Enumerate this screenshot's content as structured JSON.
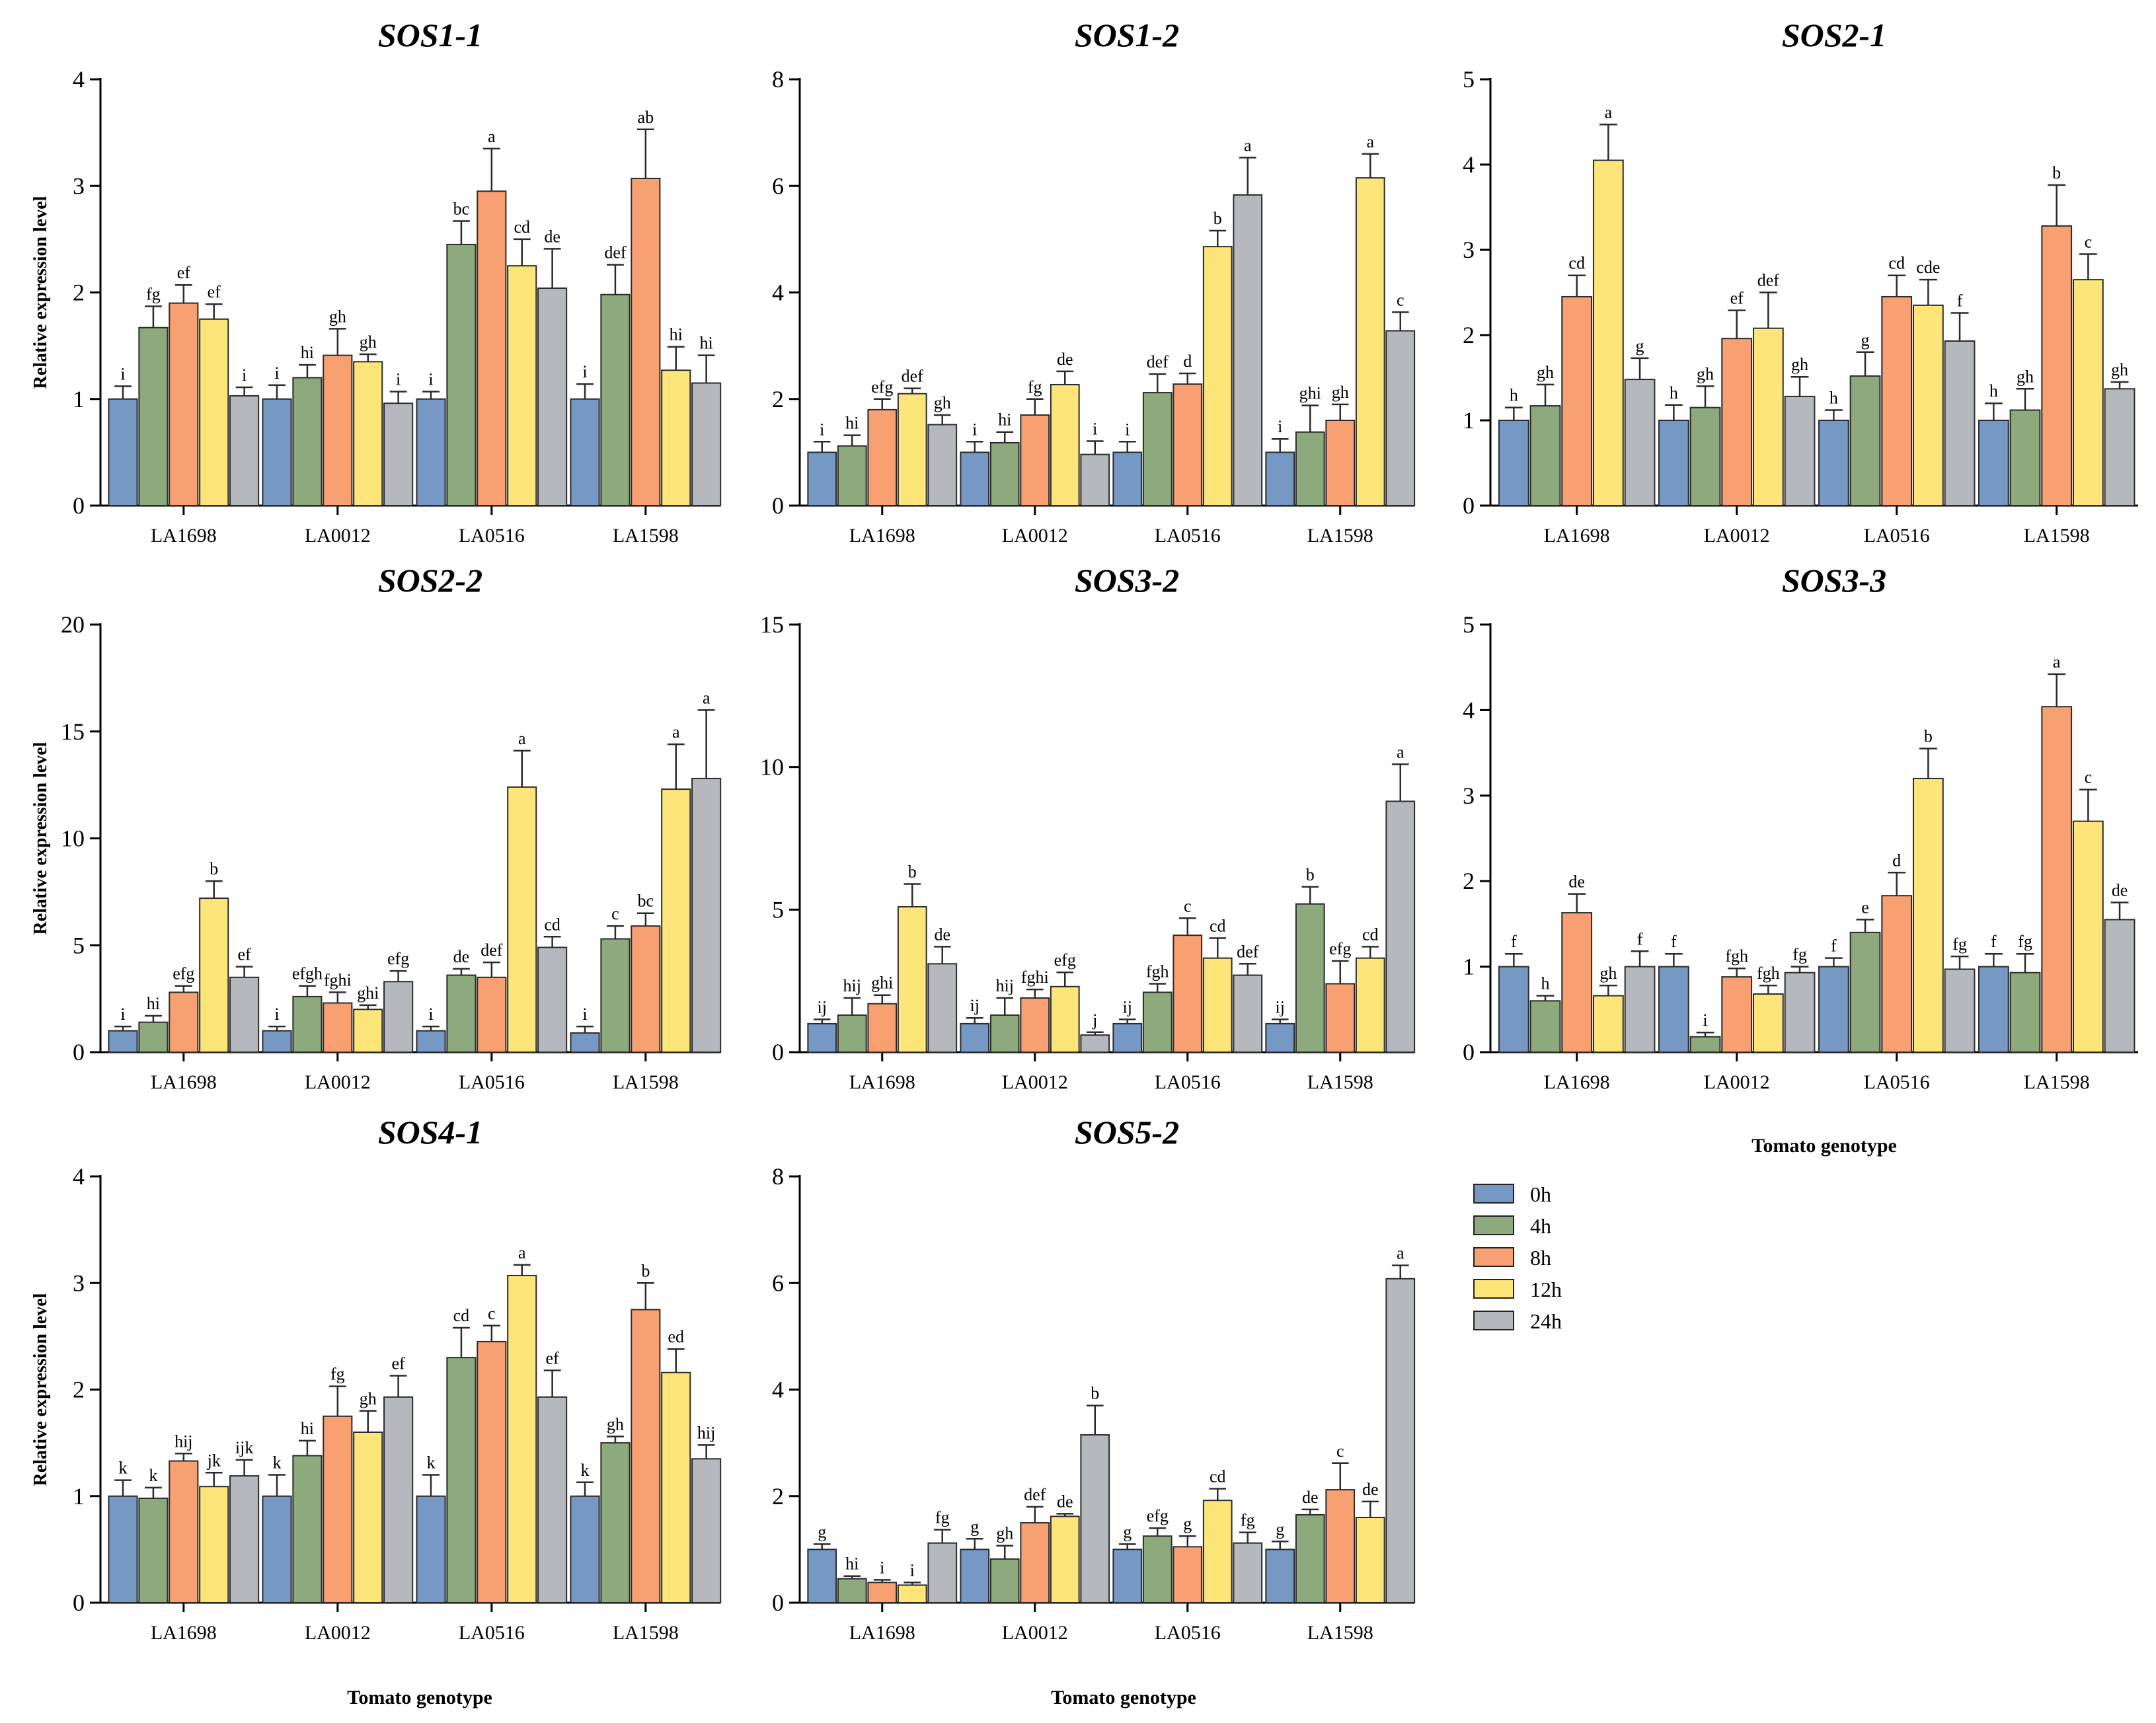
{
  "figure": {
    "x_axis_title": "Tomato genotype",
    "y_axis_title": "Relative expression level",
    "legend": {
      "entries": [
        "0h",
        "4h",
        "8h",
        "12h",
        "24h"
      ],
      "colors": [
        "#7698c4",
        "#8caa7c",
        "#f8a072",
        "#fde57a",
        "#b5b8bd"
      ]
    }
  },
  "chart_data": [
    {
      "type": "bar",
      "title": "SOS1-1",
      "xlabel": "",
      "ylabel": "Relative expression level",
      "ylim": [
        0,
        4
      ],
      "yticks": [
        0,
        1,
        2,
        3,
        4
      ],
      "categories": [
        "LA1698",
        "LA0012",
        "LA0516",
        "LA1598"
      ],
      "series": [
        {
          "name": "0h",
          "values": [
            1.0,
            1.0,
            1.0,
            1.0
          ],
          "errors": [
            0.12,
            0.13,
            0.07,
            0.14
          ],
          "letters": [
            "i",
            "i",
            "i",
            "i"
          ]
        },
        {
          "name": "4h",
          "values": [
            1.67,
            1.2,
            2.45,
            1.98
          ],
          "errors": [
            0.2,
            0.12,
            0.22,
            0.28
          ],
          "letters": [
            "fg",
            "hi",
            "bc",
            "def"
          ]
        },
        {
          "name": "8h",
          "values": [
            1.9,
            1.41,
            2.95,
            3.07
          ],
          "errors": [
            0.17,
            0.25,
            0.4,
            0.46
          ],
          "letters": [
            "ef",
            "gh",
            "a",
            "ab"
          ]
        },
        {
          "name": "12h",
          "values": [
            1.75,
            1.35,
            2.25,
            1.27
          ],
          "errors": [
            0.14,
            0.07,
            0.25,
            0.22
          ],
          "letters": [
            "ef",
            "gh",
            "cd",
            "hi"
          ]
        },
        {
          "name": "24h",
          "values": [
            1.03,
            0.96,
            2.04,
            1.15
          ],
          "errors": [
            0.08,
            0.11,
            0.37,
            0.26
          ],
          "letters": [
            "i",
            "i",
            "de",
            "hi"
          ]
        }
      ]
    },
    {
      "type": "bar",
      "title": "SOS1-2",
      "xlabel": "",
      "ylabel": "",
      "ylim": [
        0,
        8
      ],
      "yticks": [
        0,
        2,
        4,
        6,
        8
      ],
      "categories": [
        "LA1698",
        "LA0012",
        "LA0516",
        "LA1598"
      ],
      "series": [
        {
          "name": "0h",
          "values": [
            1.0,
            1.0,
            1.0,
            1.0
          ],
          "errors": [
            0.2,
            0.2,
            0.2,
            0.25
          ],
          "letters": [
            "i",
            "i",
            "i",
            "i"
          ]
        },
        {
          "name": "4h",
          "values": [
            1.12,
            1.18,
            2.12,
            1.38
          ],
          "errors": [
            0.2,
            0.2,
            0.35,
            0.5
          ],
          "letters": [
            "hi",
            "hi",
            "def",
            "ghi"
          ]
        },
        {
          "name": "8h",
          "values": [
            1.8,
            1.7,
            2.28,
            1.6
          ],
          "errors": [
            0.2,
            0.3,
            0.2,
            0.3
          ],
          "letters": [
            "efg",
            "fg",
            "d",
            "gh"
          ]
        },
        {
          "name": "12h",
          "values": [
            2.1,
            2.27,
            4.86,
            6.15
          ],
          "errors": [
            0.1,
            0.25,
            0.3,
            0.45
          ],
          "letters": [
            "def",
            "de",
            "b",
            "a"
          ]
        },
        {
          "name": "24h",
          "values": [
            1.52,
            0.96,
            5.83,
            3.28
          ],
          "errors": [
            0.18,
            0.25,
            0.7,
            0.35
          ],
          "letters": [
            "gh",
            "i",
            "a",
            "c"
          ]
        }
      ]
    },
    {
      "type": "bar",
      "title": "SOS2-1",
      "xlabel": "",
      "ylabel": "",
      "ylim": [
        0,
        5
      ],
      "yticks": [
        0,
        1,
        2,
        3,
        4,
        5
      ],
      "categories": [
        "LA1698",
        "LA0012",
        "LA0516",
        "LA1598"
      ],
      "series": [
        {
          "name": "0h",
          "values": [
            1.0,
            1.0,
            1.0,
            1.0
          ],
          "errors": [
            0.15,
            0.18,
            0.12,
            0.2
          ],
          "letters": [
            "h",
            "h",
            "h",
            "h"
          ]
        },
        {
          "name": "4h",
          "values": [
            1.17,
            1.15,
            1.52,
            1.12
          ],
          "errors": [
            0.25,
            0.25,
            0.28,
            0.25
          ],
          "letters": [
            "gh",
            "gh",
            "g",
            "gh"
          ]
        },
        {
          "name": "8h",
          "values": [
            2.45,
            1.96,
            2.45,
            3.28
          ],
          "errors": [
            0.25,
            0.33,
            0.25,
            0.48
          ],
          "letters": [
            "cd",
            "ef",
            "cd",
            "b"
          ]
        },
        {
          "name": "12h",
          "values": [
            4.05,
            2.08,
            2.35,
            2.65
          ],
          "errors": [
            0.42,
            0.42,
            0.3,
            0.3
          ],
          "letters": [
            "a",
            "def",
            "cde",
            "c"
          ]
        },
        {
          "name": "24h",
          "values": [
            1.48,
            1.28,
            1.93,
            1.37
          ],
          "errors": [
            0.25,
            0.23,
            0.33,
            0.08
          ],
          "letters": [
            "g",
            "gh",
            "f",
            "gh"
          ]
        }
      ]
    },
    {
      "type": "bar",
      "title": "SOS2-2",
      "xlabel": "",
      "ylabel": "Relative expression level",
      "ylim": [
        0,
        20
      ],
      "yticks": [
        0,
        5,
        10,
        15,
        20
      ],
      "categories": [
        "LA1698",
        "LA0012",
        "LA0516",
        "LA1598"
      ],
      "series": [
        {
          "name": "0h",
          "values": [
            1.0,
            1.0,
            1.0,
            0.9
          ],
          "errors": [
            0.2,
            0.2,
            0.2,
            0.3
          ],
          "letters": [
            "i",
            "i",
            "i",
            "i"
          ]
        },
        {
          "name": "4h",
          "values": [
            1.4,
            2.6,
            3.6,
            5.3
          ],
          "errors": [
            0.3,
            0.5,
            0.3,
            0.6
          ],
          "letters": [
            "hi",
            "efgh",
            "de",
            "c"
          ]
        },
        {
          "name": "8h",
          "values": [
            2.8,
            2.3,
            3.5,
            5.9
          ],
          "errors": [
            0.3,
            0.5,
            0.7,
            0.6
          ],
          "letters": [
            "efg",
            "fghi",
            "def",
            "bc"
          ]
        },
        {
          "name": "12h",
          "values": [
            7.2,
            2.0,
            12.4,
            12.3
          ],
          "errors": [
            0.8,
            0.2,
            1.7,
            2.1
          ],
          "letters": [
            "b",
            "ghi",
            "a",
            "a"
          ]
        },
        {
          "name": "24h",
          "values": [
            3.5,
            3.3,
            4.9,
            12.8
          ],
          "errors": [
            0.5,
            0.5,
            0.5,
            3.2
          ],
          "letters": [
            "ef",
            "efg",
            "cd",
            "a"
          ]
        }
      ]
    },
    {
      "type": "bar",
      "title": "SOS3-2",
      "xlabel": "",
      "ylabel": "",
      "ylim": [
        0,
        15
      ],
      "yticks": [
        0,
        5,
        10,
        15
      ],
      "categories": [
        "LA1698",
        "LA0012",
        "LA0516",
        "LA1598"
      ],
      "series": [
        {
          "name": "0h",
          "values": [
            1.0,
            1.0,
            1.0,
            1.0
          ],
          "errors": [
            0.15,
            0.2,
            0.15,
            0.15
          ],
          "letters": [
            "ij",
            "ij",
            "ij",
            "ij"
          ]
        },
        {
          "name": "4h",
          "values": [
            1.3,
            1.3,
            2.1,
            5.2
          ],
          "errors": [
            0.6,
            0.6,
            0.3,
            0.6
          ],
          "letters": [
            "hij",
            "hij",
            "fgh",
            "b"
          ]
        },
        {
          "name": "8h",
          "values": [
            1.7,
            1.9,
            4.1,
            2.4
          ],
          "errors": [
            0.3,
            0.3,
            0.6,
            0.8
          ],
          "letters": [
            "ghi",
            "fghi",
            "c",
            "efg"
          ]
        },
        {
          "name": "12h",
          "values": [
            5.1,
            2.3,
            3.3,
            3.3
          ],
          "errors": [
            0.8,
            0.5,
            0.7,
            0.4
          ],
          "letters": [
            "b",
            "efg",
            "cd",
            "cd"
          ]
        },
        {
          "name": "24h",
          "values": [
            3.1,
            0.6,
            2.7,
            8.8
          ],
          "errors": [
            0.6,
            0.1,
            0.4,
            1.3
          ],
          "letters": [
            "de",
            "j",
            "def",
            "a"
          ]
        }
      ]
    },
    {
      "type": "bar",
      "title": "SOS3-3",
      "xlabel": "Tomato genotype",
      "ylabel": "",
      "ylim": [
        0,
        5
      ],
      "yticks": [
        0,
        1,
        2,
        3,
        4,
        5
      ],
      "categories": [
        "LA1698",
        "LA0012",
        "LA0516",
        "LA1598"
      ],
      "series": [
        {
          "name": "0h",
          "values": [
            1.0,
            1.0,
            1.0,
            1.0
          ],
          "errors": [
            0.15,
            0.15,
            0.1,
            0.15
          ],
          "letters": [
            "f",
            "f",
            "f",
            "f"
          ]
        },
        {
          "name": "4h",
          "values": [
            0.6,
            0.18,
            1.4,
            0.93
          ],
          "errors": [
            0.06,
            0.05,
            0.15,
            0.22
          ],
          "letters": [
            "h",
            "i",
            "e",
            "fg"
          ]
        },
        {
          "name": "8h",
          "values": [
            1.63,
            0.88,
            1.83,
            4.04
          ],
          "errors": [
            0.22,
            0.1,
            0.27,
            0.38
          ],
          "letters": [
            "de",
            "fgh",
            "d",
            "a"
          ]
        },
        {
          "name": "12h",
          "values": [
            0.66,
            0.68,
            3.2,
            2.7
          ],
          "errors": [
            0.12,
            0.1,
            0.35,
            0.37
          ],
          "letters": [
            "gh",
            "fgh",
            "b",
            "c"
          ]
        },
        {
          "name": "24h",
          "values": [
            1.0,
            0.93,
            0.97,
            1.55
          ],
          "errors": [
            0.18,
            0.07,
            0.15,
            0.2
          ],
          "letters": [
            "f",
            "fg",
            "fg",
            "de"
          ]
        }
      ]
    },
    {
      "type": "bar",
      "title": "SOS4-1",
      "xlabel": "Tomato genotype",
      "ylabel": "Relative expression level",
      "ylim": [
        0,
        4
      ],
      "yticks": [
        0,
        1,
        2,
        3,
        4
      ],
      "categories": [
        "LA1698",
        "LA0012",
        "LA0516",
        "LA1598"
      ],
      "series": [
        {
          "name": "0h",
          "values": [
            1.0,
            1.0,
            1.0,
            1.0
          ],
          "errors": [
            0.15,
            0.2,
            0.2,
            0.13
          ],
          "letters": [
            "k",
            "k",
            "k",
            "k"
          ]
        },
        {
          "name": "4h",
          "values": [
            0.98,
            1.38,
            2.3,
            1.5
          ],
          "errors": [
            0.1,
            0.14,
            0.28,
            0.06
          ],
          "letters": [
            "k",
            "hi",
            "cd",
            "gh"
          ]
        },
        {
          "name": "8h",
          "values": [
            1.33,
            1.75,
            2.45,
            2.75
          ],
          "errors": [
            0.07,
            0.28,
            0.15,
            0.25
          ],
          "letters": [
            "hij",
            "fg",
            "c",
            "b"
          ]
        },
        {
          "name": "12h",
          "values": [
            1.09,
            1.6,
            3.07,
            2.16
          ],
          "errors": [
            0.13,
            0.2,
            0.1,
            0.22
          ],
          "letters": [
            "jk",
            "gh",
            "a",
            "ed"
          ]
        },
        {
          "name": "24h",
          "values": [
            1.19,
            1.93,
            1.93,
            1.35
          ],
          "errors": [
            0.15,
            0.2,
            0.25,
            0.13
          ],
          "letters": [
            "ijk",
            "ef",
            "ef",
            "hij"
          ]
        }
      ]
    },
    {
      "type": "bar",
      "title": "SOS5-2",
      "xlabel": "Tomato genotype",
      "ylabel": "",
      "ylim": [
        0,
        8
      ],
      "yticks": [
        0,
        2,
        4,
        6,
        8
      ],
      "categories": [
        "LA1698",
        "LA0012",
        "LA0516",
        "LA1598"
      ],
      "series": [
        {
          "name": "0h",
          "values": [
            1.0,
            1.0,
            1.0,
            1.0
          ],
          "errors": [
            0.1,
            0.2,
            0.1,
            0.15
          ],
          "letters": [
            "g",
            "g",
            "g",
            "g"
          ]
        },
        {
          "name": "4h",
          "values": [
            0.45,
            0.82,
            1.25,
            1.65
          ],
          "errors": [
            0.05,
            0.25,
            0.15,
            0.1
          ],
          "letters": [
            "hi",
            "gh",
            "efg",
            "de"
          ]
        },
        {
          "name": "8h",
          "values": [
            0.38,
            1.5,
            1.05,
            2.12
          ],
          "errors": [
            0.05,
            0.3,
            0.2,
            0.5
          ],
          "letters": [
            "i",
            "def",
            "g",
            "c"
          ]
        },
        {
          "name": "12h",
          "values": [
            0.33,
            1.62,
            1.92,
            1.6
          ],
          "errors": [
            0.05,
            0.05,
            0.22,
            0.3
          ],
          "letters": [
            "i",
            "de",
            "cd",
            "de"
          ]
        },
        {
          "name": "24h",
          "values": [
            1.12,
            3.15,
            1.12,
            6.08
          ],
          "errors": [
            0.25,
            0.55,
            0.2,
            0.25
          ],
          "letters": [
            "fg",
            "b",
            "fg",
            "a"
          ]
        }
      ]
    }
  ]
}
